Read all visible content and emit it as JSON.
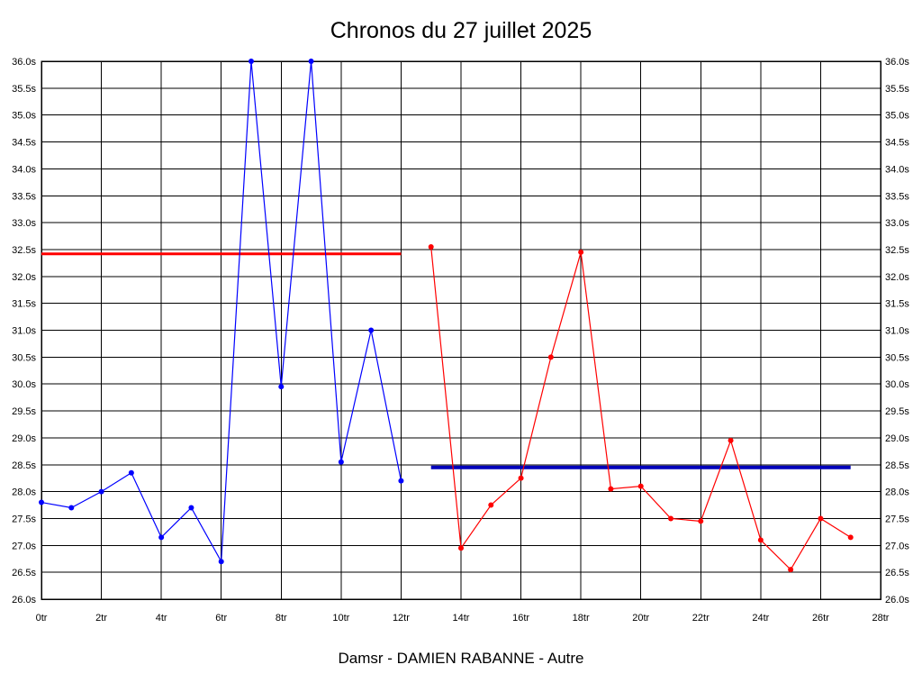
{
  "title": "Chronos du 27 juillet 2025",
  "subtitle": "Damsr - DAMIEN RABANNE - Autre",
  "chart_data": {
    "type": "line",
    "title": "Chronos du 27 juillet 2025",
    "xlabel": "",
    "ylabel": "",
    "xlim": [
      0,
      28
    ],
    "ylim": [
      26.0,
      36.0
    ],
    "grid": true,
    "grid_color": "#000000",
    "x_unit": "tr",
    "y_unit": "s",
    "x_ticks": [
      0,
      2,
      4,
      6,
      8,
      10,
      12,
      14,
      16,
      18,
      20,
      22,
      24,
      26,
      28
    ],
    "x_tick_labels": [
      "0tr",
      "2tr",
      "4tr",
      "6tr",
      "8tr",
      "10tr",
      "12tr",
      "14tr",
      "16tr",
      "18tr",
      "20tr",
      "22tr",
      "24tr",
      "26tr",
      "28tr"
    ],
    "y_ticks": [
      26.0,
      26.5,
      27.0,
      27.5,
      28.0,
      28.5,
      29.0,
      29.5,
      30.0,
      30.5,
      31.0,
      31.5,
      32.0,
      32.5,
      33.0,
      33.5,
      34.0,
      34.5,
      35.0,
      35.5,
      36.0
    ],
    "y_tick_labels": [
      "26.0s",
      "26.5s",
      "27.0s",
      "27.5s",
      "28.0s",
      "28.5s",
      "29.0s",
      "29.5s",
      "30.0s",
      "30.5s",
      "31.0s",
      "31.5s",
      "32.0s",
      "32.5s",
      "33.0s",
      "33.5s",
      "34.0s",
      "34.5s",
      "35.0s",
      "35.5s",
      "36.0s"
    ],
    "legend": "none",
    "series": [
      {
        "name": "serie-bleue",
        "color": "#0000ff",
        "x": [
          0,
          1,
          2,
          3,
          4,
          5,
          6,
          7,
          8,
          9,
          10,
          11,
          12
        ],
        "values": [
          27.8,
          27.7,
          28.0,
          28.35,
          27.15,
          27.7,
          26.7,
          36.0,
          29.95,
          36.0,
          28.55,
          31.0,
          28.2
        ]
      },
      {
        "name": "serie-rouge",
        "color": "#ff0000",
        "x": [
          13,
          14,
          15,
          16,
          17,
          18,
          19,
          20,
          21,
          22,
          23,
          24,
          25,
          26,
          27
        ],
        "values": [
          32.55,
          26.95,
          27.75,
          28.25,
          30.5,
          32.45,
          28.05,
          28.1,
          27.5,
          27.45,
          28.95,
          27.1,
          26.55,
          27.5,
          27.15
        ]
      }
    ],
    "reference_lines": [
      {
        "name": "ligne-reference-rouge",
        "color": "#ff0000",
        "y": 32.42,
        "x_start": 0,
        "x_end": 12,
        "width": 3
      },
      {
        "name": "ligne-reference-bleue",
        "color": "#0000bb",
        "y": 28.45,
        "x_start": 13,
        "x_end": 27,
        "width": 4
      }
    ]
  }
}
